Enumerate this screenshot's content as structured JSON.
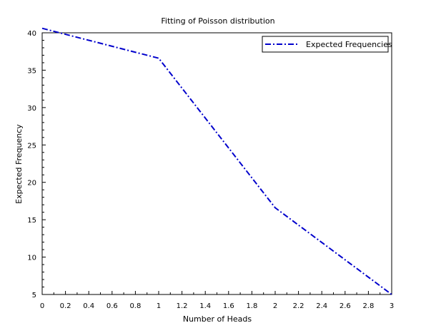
{
  "chart_data": {
    "type": "line",
    "title": "Fitting of Poisson distribution",
    "xlabel": "Number of Heads",
    "ylabel": "Expected Frequency",
    "xlim": [
      0,
      3
    ],
    "ylim": [
      5,
      40
    ],
    "xticks": [
      "0",
      "0.2",
      "0.4",
      "0.6",
      "0.8",
      "1",
      "1.2",
      "1.4",
      "1.6",
      "1.8",
      "2",
      "2.2",
      "2.4",
      "2.6",
      "2.8",
      "3"
    ],
    "yticks": [
      "5",
      "10",
      "15",
      "20",
      "25",
      "30",
      "35",
      "40"
    ],
    "grid": false,
    "legend": {
      "placement": "top-right",
      "entries": [
        "Expected Frequencies"
      ]
    },
    "series": [
      {
        "name": "Expected Frequencies",
        "color": "#0000cc",
        "line_style": "dash-dot",
        "x": [
          0,
          1,
          2,
          3
        ],
        "y": [
          40.6,
          36.6,
          16.6,
          5.0
        ]
      }
    ]
  }
}
